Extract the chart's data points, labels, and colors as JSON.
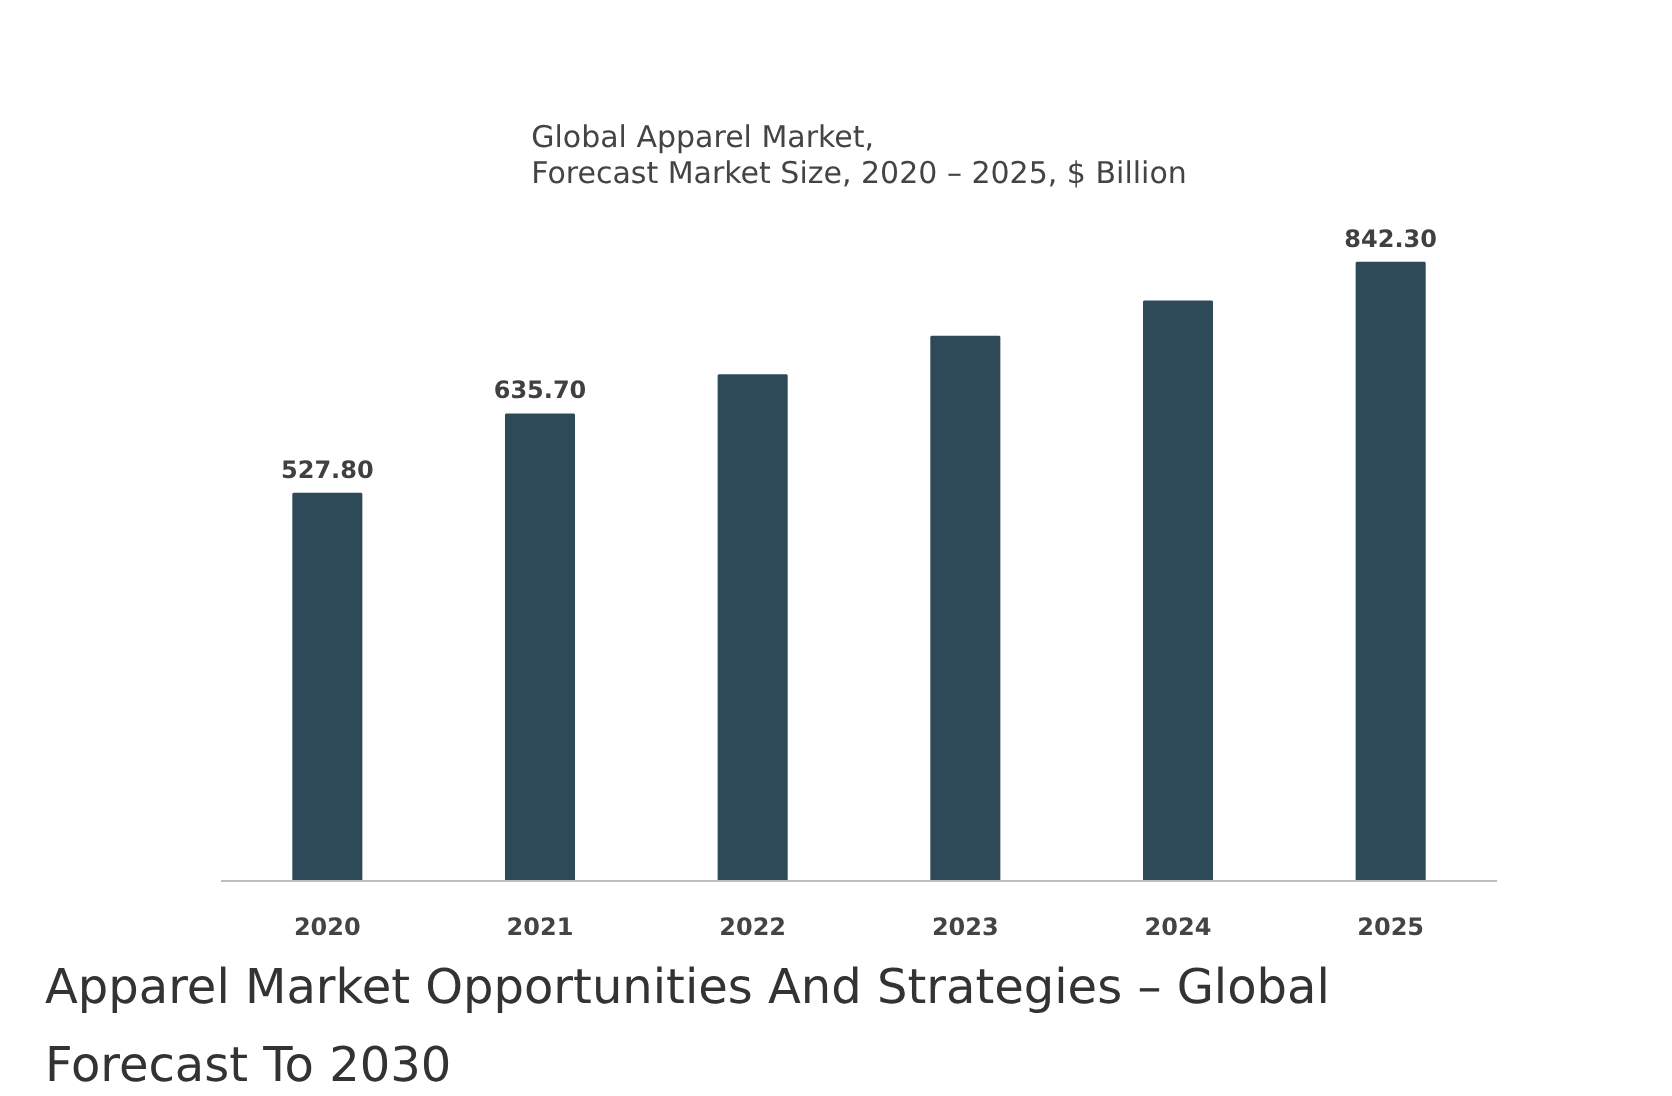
{
  "chart_data": {
    "type": "bar",
    "title": "Global Apparel Market,\nForecast Market Size, 2020 – 2025, $ Billion",
    "categories": [
      "2020",
      "2021",
      "2022",
      "2023",
      "2024",
      "2025"
    ],
    "values": [
      527.8,
      635.7,
      689,
      741.5,
      789.5,
      842.3
    ],
    "value_labels": [
      "527.80",
      "635.70",
      null,
      null,
      null,
      "842.30"
    ],
    "color": "#2e4a58",
    "grid": false,
    "annotations": [
      "Apparel Market Opportunities And Strategies – Global Forecast To 2030"
    ]
  }
}
